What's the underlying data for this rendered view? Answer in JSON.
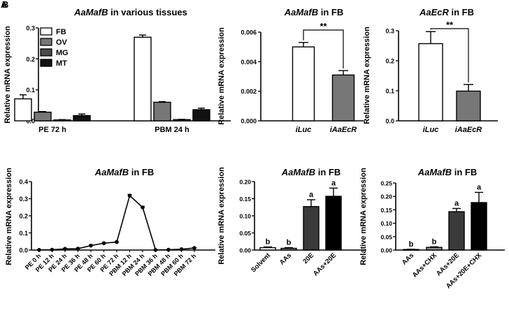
{
  "panel_labels": [
    "A",
    "B"
  ],
  "chart_data": [
    {
      "id": "c1",
      "type": "bar",
      "title_gene": "AaMafB",
      "title_rest": " in various tissues",
      "ylabel": "Relative mRNA expression",
      "ylim": [
        0,
        0.3
      ],
      "yticks": [
        "0.0",
        "0.1",
        "0.2",
        "0.3"
      ],
      "categories": [
        "PE 72 h",
        "PBM 24 h"
      ],
      "legend": "top-left",
      "series": [
        {
          "name": "FB",
          "color": "#ffffff",
          "values": [
            0.071,
            0.27
          ],
          "errors": [
            0.013,
            0.007
          ]
        },
        {
          "name": "OV",
          "color": "#777777",
          "values": [
            0.028,
            0.06
          ],
          "errors": [
            0.002,
            0.002
          ]
        },
        {
          "name": "MG",
          "color": "#4a4a4a",
          "values": [
            0.003,
            0.004
          ],
          "errors": [
            0.001,
            0.001
          ]
        },
        {
          "name": "MT",
          "color": "#111111",
          "values": [
            0.017,
            0.036
          ],
          "errors": [
            0.005,
            0.005
          ]
        }
      ]
    },
    {
      "id": "c2",
      "type": "bar",
      "title_gene": "AaMafB",
      "title_rest": " in FB",
      "ylabel": "Relative mRNA expression",
      "ylim": [
        0,
        0.006
      ],
      "yticks": [
        "0.000",
        "0.002",
        "0.004",
        "0.006"
      ],
      "categories": [
        "iLuc",
        "iAaEcR"
      ],
      "colors": [
        "#ffffff",
        "#777777"
      ],
      "values": [
        0.005,
        0.0031
      ],
      "errors": [
        0.0003,
        0.0003
      ],
      "significance": "**"
    },
    {
      "id": "c3",
      "type": "bar",
      "title_gene": "AaEcR",
      "title_rest": " in FB",
      "ylabel": "Relative mRNA expression",
      "ylim": [
        0,
        0.3
      ],
      "yticks": [
        "0.0",
        "0.1",
        "0.2",
        "0.3"
      ],
      "categories": [
        "iLuc",
        "iAaEcR"
      ],
      "colors": [
        "#ffffff",
        "#777777"
      ],
      "values": [
        0.257,
        0.099
      ],
      "errors": [
        0.04,
        0.022
      ],
      "significance": "**"
    },
    {
      "id": "c4",
      "type": "line",
      "title_gene": "AaMafB",
      "title_rest": " in FB",
      "ylabel": "Relative mRNA expression",
      "ylim": [
        0,
        0.4
      ],
      "yticks": [
        "0.0",
        "0.1",
        "0.2",
        "0.3",
        "0.4"
      ],
      "categories": [
        "PE 0 h",
        "PE 12 h",
        "PE 24 h",
        "PE 36 h",
        "PE 48 h",
        "PE 60 h",
        "PE 72 h",
        "PBM 12 h",
        "PBM 24 h",
        "PBM 36 h",
        "PBM 48 h",
        "PBM 60 h",
        "PBM 72 h"
      ],
      "values": [
        0.001,
        0.002,
        0.007,
        0.008,
        0.026,
        0.04,
        0.047,
        0.318,
        0.249,
        0.001,
        0.002,
        0.005,
        0.012
      ],
      "errors": [
        0.001,
        0.001,
        0.001,
        0.001,
        0.004,
        0.002,
        0.002,
        0.007,
        0.007,
        0.001,
        0.001,
        0.001,
        0.002
      ]
    },
    {
      "id": "c5",
      "type": "bar",
      "title_gene": "AaMafB",
      "title_rest": " in FB",
      "ylabel": "Relative mRNA expression",
      "ylim": [
        0,
        0.2
      ],
      "yticks": [
        "0.00",
        "0.05",
        "0.10",
        "0.15",
        "0.20"
      ],
      "categories": [
        "Solvent",
        "AAs",
        "20E",
        "AAs+20E"
      ],
      "colors": [
        "#ffffff",
        "#888888",
        "#3a3a3a",
        "#000000"
      ],
      "values": [
        0.007,
        0.005,
        0.127,
        0.157
      ],
      "errors": [
        0.002,
        0.002,
        0.02,
        0.024
      ],
      "letters": [
        "b",
        "b",
        "a",
        "a"
      ]
    },
    {
      "id": "c6",
      "type": "bar",
      "title_gene": "AaMafB",
      "title_rest": " in FB",
      "ylabel": "Relative mRNA expression",
      "ylim": [
        0,
        0.25
      ],
      "yticks": [
        "0.00",
        "0.05",
        "0.10",
        "0.15",
        "0.20",
        "0.25"
      ],
      "categories": [
        "AAs",
        "AAs+CHX",
        "AAs+20E",
        "AAs+20E+CHX"
      ],
      "colors": [
        "#ffffff",
        "#888888",
        "#3a3a3a",
        "#000000"
      ],
      "values": [
        0.002,
        0.01,
        0.143,
        0.177
      ],
      "errors": [
        0.001,
        0.002,
        0.012,
        0.038
      ],
      "letters": [
        "b",
        "b",
        "a",
        "a"
      ]
    }
  ]
}
